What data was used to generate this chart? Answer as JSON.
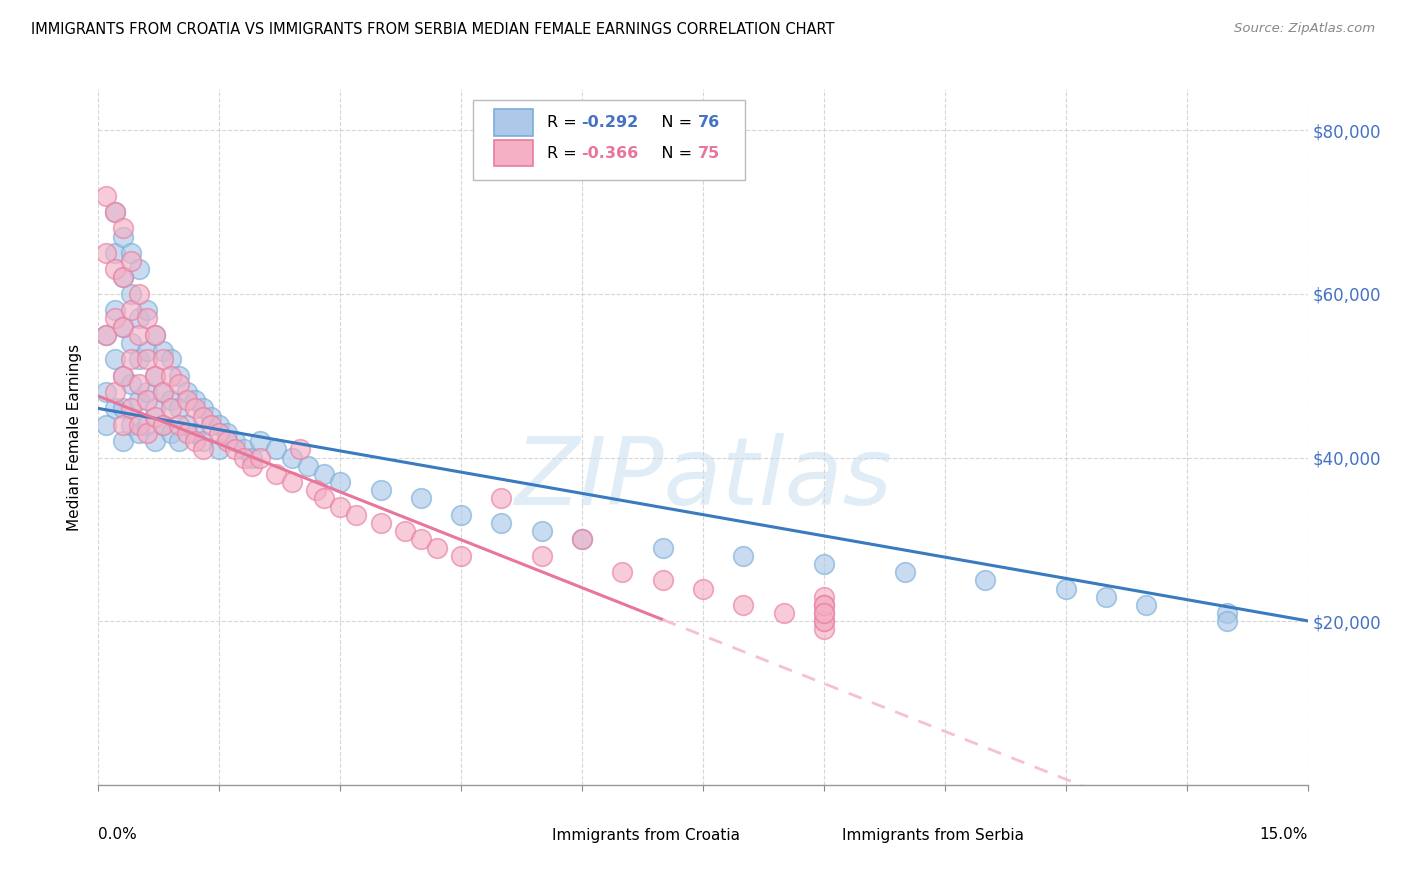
{
  "title": "IMMIGRANTS FROM CROATIA VS IMMIGRANTS FROM SERBIA MEDIAN FEMALE EARNINGS CORRELATION CHART",
  "source": "Source: ZipAtlas.com",
  "ylabel": "Median Female Earnings",
  "y_ticks": [
    0,
    20000,
    40000,
    60000,
    80000
  ],
  "y_tick_labels": [
    "",
    "$20,000",
    "$40,000",
    "$60,000",
    "$80,000"
  ],
  "xlim": [
    0.0,
    0.15
  ],
  "ylim": [
    0,
    85000
  ],
  "croatia_color": "#adc8e8",
  "croatia_edge_color": "#7aaed6",
  "serbia_color": "#f5b0c5",
  "serbia_edge_color": "#e87da0",
  "croatia_line_color": "#3a7abf",
  "serbia_line_color": "#e8769a",
  "serbia_line_ext_color": "#f5c0d0",
  "R_croatia": -0.292,
  "N_croatia": 76,
  "R_serbia": -0.366,
  "N_serbia": 75,
  "legend_label_croatia": "Immigrants from Croatia",
  "legend_label_serbia": "Immigrants from Serbia",
  "watermark": "ZIPatlas",
  "croatia_intercept": 46000,
  "croatia_slope": -173000,
  "serbia_intercept": 47500,
  "serbia_slope": -390000,
  "croatia_x": [
    0.001,
    0.001,
    0.001,
    0.002,
    0.002,
    0.002,
    0.002,
    0.002,
    0.003,
    0.003,
    0.003,
    0.003,
    0.003,
    0.003,
    0.004,
    0.004,
    0.004,
    0.004,
    0.004,
    0.005,
    0.005,
    0.005,
    0.005,
    0.005,
    0.006,
    0.006,
    0.006,
    0.006,
    0.007,
    0.007,
    0.007,
    0.007,
    0.008,
    0.008,
    0.008,
    0.009,
    0.009,
    0.009,
    0.01,
    0.01,
    0.01,
    0.011,
    0.011,
    0.012,
    0.012,
    0.013,
    0.013,
    0.014,
    0.015,
    0.015,
    0.016,
    0.017,
    0.018,
    0.019,
    0.02,
    0.022,
    0.024,
    0.026,
    0.028,
    0.03,
    0.035,
    0.04,
    0.045,
    0.05,
    0.055,
    0.06,
    0.07,
    0.08,
    0.09,
    0.1,
    0.11,
    0.12,
    0.125,
    0.13,
    0.14,
    0.14
  ],
  "croatia_y": [
    55000,
    48000,
    44000,
    70000,
    65000,
    58000,
    52000,
    46000,
    67000,
    62000,
    56000,
    50000,
    46000,
    42000,
    65000,
    60000,
    54000,
    49000,
    44000,
    63000,
    57000,
    52000,
    47000,
    43000,
    58000,
    53000,
    48000,
    44000,
    55000,
    50000,
    46000,
    42000,
    53000,
    48000,
    44000,
    52000,
    47000,
    43000,
    50000,
    46000,
    42000,
    48000,
    44000,
    47000,
    43000,
    46000,
    42000,
    45000,
    44000,
    41000,
    43000,
    42000,
    41000,
    40000,
    42000,
    41000,
    40000,
    39000,
    38000,
    37000,
    36000,
    35000,
    33000,
    32000,
    31000,
    30000,
    29000,
    28000,
    27000,
    26000,
    25000,
    24000,
    23000,
    22000,
    21000,
    20000
  ],
  "serbia_x": [
    0.001,
    0.001,
    0.001,
    0.002,
    0.002,
    0.002,
    0.002,
    0.003,
    0.003,
    0.003,
    0.003,
    0.003,
    0.004,
    0.004,
    0.004,
    0.004,
    0.005,
    0.005,
    0.005,
    0.005,
    0.006,
    0.006,
    0.006,
    0.006,
    0.007,
    0.007,
    0.007,
    0.008,
    0.008,
    0.008,
    0.009,
    0.009,
    0.01,
    0.01,
    0.011,
    0.011,
    0.012,
    0.012,
    0.013,
    0.013,
    0.014,
    0.015,
    0.016,
    0.017,
    0.018,
    0.019,
    0.02,
    0.022,
    0.024,
    0.025,
    0.027,
    0.028,
    0.03,
    0.032,
    0.035,
    0.038,
    0.04,
    0.042,
    0.045,
    0.05,
    0.055,
    0.06,
    0.065,
    0.07,
    0.075,
    0.08,
    0.085,
    0.09,
    0.09,
    0.09,
    0.09,
    0.09,
    0.09,
    0.09,
    0.09
  ],
  "serbia_y": [
    72000,
    65000,
    55000,
    70000,
    63000,
    57000,
    48000,
    68000,
    62000,
    56000,
    50000,
    44000,
    64000,
    58000,
    52000,
    46000,
    60000,
    55000,
    49000,
    44000,
    57000,
    52000,
    47000,
    43000,
    55000,
    50000,
    45000,
    52000,
    48000,
    44000,
    50000,
    46000,
    49000,
    44000,
    47000,
    43000,
    46000,
    42000,
    45000,
    41000,
    44000,
    43000,
    42000,
    41000,
    40000,
    39000,
    40000,
    38000,
    37000,
    41000,
    36000,
    35000,
    34000,
    33000,
    32000,
    31000,
    30000,
    29000,
    28000,
    35000,
    28000,
    30000,
    26000,
    25000,
    24000,
    22000,
    21000,
    20000,
    23000,
    19000,
    22000,
    21000,
    20000,
    22000,
    21000
  ]
}
